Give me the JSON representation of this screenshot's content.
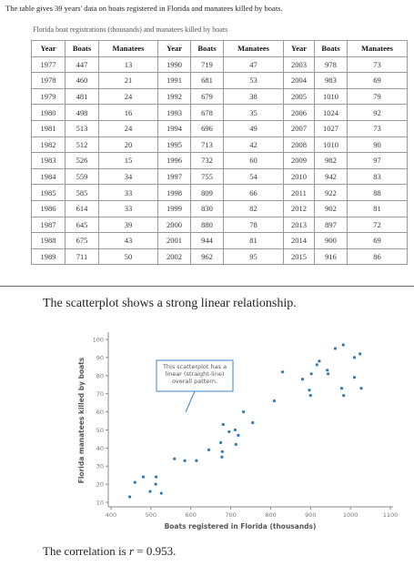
{
  "intro": "The table gives 39 years' data on boats registered in Florida and manatees killed by boats.",
  "table": {
    "caption": "Florida boat registrations (thousands) and manatees killed by boats",
    "headers": [
      "Year",
      "Boats",
      "Manatees",
      "Year",
      "Boats",
      "Manatees",
      "Year",
      "Boats",
      "Manatees"
    ],
    "rows": [
      [
        1977,
        447,
        13,
        1990,
        719,
        47,
        2003,
        978,
        73
      ],
      [
        1978,
        460,
        21,
        1991,
        681,
        53,
        2004,
        983,
        69
      ],
      [
        1979,
        481,
        24,
        1992,
        679,
        38,
        2005,
        1010,
        79
      ],
      [
        1980,
        498,
        16,
        1993,
        678,
        35,
        2006,
        1024,
        92
      ],
      [
        1981,
        513,
        24,
        1994,
        696,
        49,
        2007,
        1027,
        73
      ],
      [
        1982,
        512,
        20,
        1995,
        713,
        42,
        2008,
        1010,
        90
      ],
      [
        1983,
        526,
        15,
        1996,
        732,
        60,
        2009,
        982,
        97
      ],
      [
        1984,
        559,
        34,
        1997,
        755,
        54,
        2010,
        942,
        83
      ],
      [
        1985,
        585,
        33,
        1998,
        809,
        66,
        2011,
        922,
        88
      ],
      [
        1986,
        614,
        33,
        1999,
        830,
        82,
        2012,
        902,
        81
      ],
      [
        1987,
        645,
        39,
        2000,
        880,
        78,
        2013,
        897,
        72
      ],
      [
        1988,
        675,
        43,
        2001,
        944,
        81,
        2014,
        900,
        69
      ],
      [
        1989,
        711,
        50,
        2002,
        962,
        95,
        2015,
        916,
        86
      ]
    ]
  },
  "scatter_text": "The scatterplot shows a strong linear relationship.",
  "chart_data": {
    "type": "scatter",
    "x_label": "Boats registered in Florida (thousands)",
    "y_label": "Florida manatees killed by boats",
    "annotation": "This scatterplot has a linear (straight-line) overall pattern.",
    "x": [
      447,
      460,
      481,
      498,
      513,
      512,
      526,
      559,
      585,
      614,
      645,
      675,
      711,
      719,
      681,
      679,
      678,
      696,
      713,
      732,
      755,
      809,
      830,
      880,
      944,
      962,
      978,
      983,
      1010,
      1024,
      1027,
      1010,
      982,
      942,
      922,
      902,
      897,
      900,
      916
    ],
    "values": [
      13,
      21,
      24,
      16,
      24,
      20,
      15,
      34,
      33,
      33,
      39,
      43,
      50,
      47,
      53,
      38,
      35,
      49,
      42,
      60,
      54,
      66,
      82,
      78,
      81,
      95,
      73,
      69,
      79,
      92,
      73,
      90,
      97,
      83,
      88,
      81,
      72,
      69,
      86
    ],
    "color": "#2b7bb9",
    "xlim": [
      400,
      1100
    ],
    "xticks": [
      400,
      500,
      600,
      700,
      800,
      900,
      1000,
      1100
    ],
    "ylim": [
      10,
      100
    ],
    "yticks": [
      10,
      20,
      30,
      40,
      50,
      60,
      70,
      80,
      90,
      100
    ]
  },
  "correlation": {
    "text": "The correlation is",
    "symbol": "r",
    "rest": "= 0.953."
  }
}
